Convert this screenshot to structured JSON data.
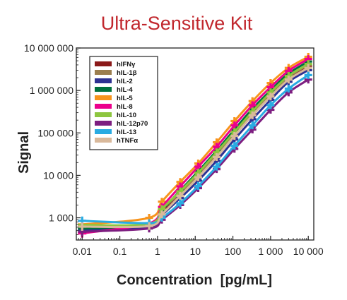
{
  "chart_data": {
    "type": "line",
    "title": "Ultra-Sensitive Kit",
    "xlabel": "Concentration  [pg/mL]",
    "ylabel": "Signal",
    "xscale": "log",
    "yscale": "log",
    "xlim": [
      0.007,
      14000
    ],
    "ylim": [
      300,
      10000000
    ],
    "xticks": [
      0.01,
      0.1,
      1,
      10,
      100,
      1000,
      10000
    ],
    "xtick_labels": [
      "0.01",
      "0.1",
      "1",
      "10",
      "100",
      "1 000",
      "10 000"
    ],
    "yticks": [
      1000,
      10000,
      100000,
      1000000,
      10000000
    ],
    "ytick_labels": [
      "1 000",
      "10 000",
      "100 000",
      "1 000 000",
      "10 000 000"
    ],
    "legend_position": "top-left",
    "grid": false,
    "x": [
      0.01,
      0.6,
      1.3,
      4,
      12,
      37,
      110,
      330,
      1000,
      3000,
      10000
    ],
    "series": [
      {
        "name": "hIFNγ",
        "color": "#8b1a1a",
        "values": [
          600,
          650,
          1400,
          3600,
          9500,
          28000,
          90000,
          270000,
          750000,
          1900000,
          3700000
        ]
      },
      {
        "name": "hIL-1β",
        "color": "#9c7f4f",
        "values": [
          650,
          700,
          1500,
          3900,
          10500,
          32000,
          100000,
          300000,
          850000,
          2100000,
          4000000
        ]
      },
      {
        "name": "hIL-2",
        "color": "#2e3192",
        "values": [
          520,
          620,
          1150,
          2900,
          7500,
          22000,
          70000,
          210000,
          600000,
          1600000,
          3000000
        ]
      },
      {
        "name": "hIL-4",
        "color": "#00703c",
        "values": [
          560,
          680,
          1500,
          4400,
          12500,
          38000,
          120000,
          370000,
          1000000,
          2500000,
          4800000
        ]
      },
      {
        "name": "hIL-5",
        "color": "#f7941d",
        "values": [
          700,
          1000,
          2400,
          7000,
          19000,
          60000,
          190000,
          560000,
          1500000,
          3400000,
          6200000
        ]
      },
      {
        "name": "hIL-8",
        "color": "#ec008c",
        "values": [
          430,
          740,
          1800,
          5500,
          16000,
          47000,
          150000,
          450000,
          1200000,
          2900000,
          5500000
        ]
      },
      {
        "name": "hIL-10",
        "color": "#8dc63f",
        "values": [
          680,
          720,
          1600,
          4200,
          11500,
          35000,
          105000,
          320000,
          900000,
          2200000,
          4200000
        ]
      },
      {
        "name": "hIL-12p70",
        "color": "#7d1e80",
        "values": [
          470,
          560,
          900,
          2000,
          5000,
          14000,
          42000,
          120000,
          350000,
          900000,
          1800000
        ]
      },
      {
        "name": "hIL-13",
        "color": "#29abe2",
        "values": [
          850,
          750,
          1000,
          2200,
          5600,
          16000,
          50000,
          150000,
          450000,
          1100000,
          2300000
        ]
      },
      {
        "name": "hTNFα",
        "color": "#d9b99b",
        "values": [
          620,
          640,
          1200,
          3300,
          9000,
          27000,
          85000,
          260000,
          720000,
          1800000,
          3400000
        ]
      }
    ]
  }
}
